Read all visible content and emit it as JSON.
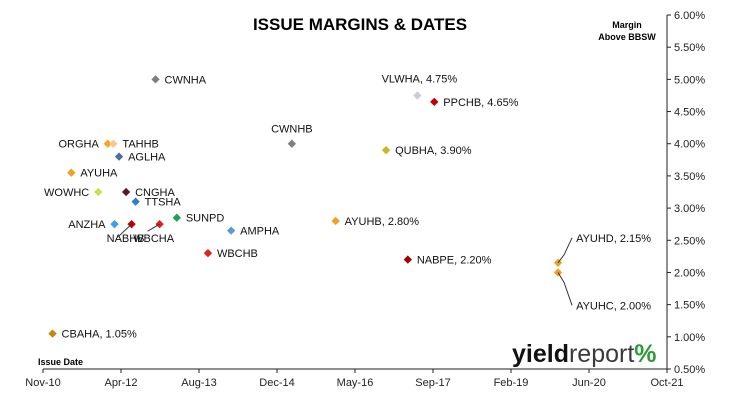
{
  "chart_data": {
    "type": "scatter",
    "title": "ISSUE MARGINS & DATES",
    "xlabel": "Issue Date",
    "ylabel": "Margin Above BBSW",
    "ylabel_lines": [
      "Margin",
      "Above BBSW"
    ],
    "xlim": [
      "2010-11-01",
      "2021-10-01"
    ],
    "ylim": [
      0.5,
      6.0
    ],
    "x_ticks": [
      "Nov-10",
      "Apr-12",
      "Aug-13",
      "Dec-14",
      "May-16",
      "Sep-17",
      "Feb-19",
      "Jun-20",
      "Oct-21"
    ],
    "y_ticks": [
      "0.50%",
      "1.00%",
      "1.50%",
      "2.00%",
      "2.50%",
      "3.00%",
      "3.50%",
      "4.00%",
      "4.50%",
      "5.00%",
      "5.50%",
      "6.00%"
    ],
    "grid": false,
    "legend": "none",
    "points": [
      {
        "label": "CWNHA",
        "x": "2012-10-20",
        "y": 5.0,
        "color": "#7f7f7f",
        "label_pos": "right"
      },
      {
        "label": "VLWHA, 4.75%",
        "x": "2017-05-20",
        "y": 4.75,
        "color": "#c9ccd6",
        "label_pos": "above-left"
      },
      {
        "label": "PPCHB, 4.65%",
        "x": "2017-09-05",
        "y": 4.65,
        "color": "#c00000",
        "label_pos": "right"
      },
      {
        "label": "CWNHB",
        "x": "2015-03-10",
        "y": 4.0,
        "color": "#7f7f7f",
        "label_pos": "above"
      },
      {
        "label": "QUBHA, 3.90%",
        "x": "2016-11-01",
        "y": 3.9,
        "color": "#c6b820",
        "label_pos": "right"
      },
      {
        "label": "ORGHA",
        "x": "2011-12-20",
        "y": 4.0,
        "color": "#f5a623",
        "label_pos": "left"
      },
      {
        "label": "TAHHB",
        "x": "2012-01-25",
        "y": 4.0,
        "color": "#f7c98d",
        "label_pos": "right"
      },
      {
        "label": "AGLHA",
        "x": "2012-03-01",
        "y": 3.8,
        "color": "#4a6fa0",
        "label_pos": "right"
      },
      {
        "label": "AYUHA",
        "x": "2011-05-01",
        "y": 3.55,
        "color": "#f0a020",
        "label_pos": "right"
      },
      {
        "label": "WOWHC",
        "x": "2011-10-20",
        "y": 3.25,
        "color": "#c8e04a",
        "label_pos": "left"
      },
      {
        "label": "CNGHA",
        "x": "2012-04-15",
        "y": 3.25,
        "color": "#5a1830",
        "label_pos": "right"
      },
      {
        "label": "TTSHA",
        "x": "2012-06-15",
        "y": 3.1,
        "color": "#2e7dd1",
        "label_pos": "right"
      },
      {
        "label": "SUNPD",
        "x": "2013-03-05",
        "y": 2.85,
        "color": "#1ea05a",
        "label_pos": "right"
      },
      {
        "label": "ANZHA",
        "x": "2012-02-01",
        "y": 2.75,
        "color": "#3ca0f0",
        "label_pos": "left"
      },
      {
        "label": "NABHB",
        "x": "2012-05-20",
        "y": 2.75,
        "color": "#c00000",
        "label_pos": "below-left"
      },
      {
        "label": "WBCHA",
        "x": "2012-11-15",
        "y": 2.75,
        "color": "#e02020",
        "label_pos": "below-left"
      },
      {
        "label": "AYUHB, 2.80%",
        "x": "2015-12-15",
        "y": 2.8,
        "color": "#f0a020",
        "label_pos": "right"
      },
      {
        "label": "AMPHA",
        "x": "2014-02-15",
        "y": 2.65,
        "color": "#5b9bd5",
        "label_pos": "right"
      },
      {
        "label": "WBCHB",
        "x": "2013-09-20",
        "y": 2.3,
        "color": "#e02020",
        "label_pos": "right"
      },
      {
        "label": "NABPE, 2.20%",
        "x": "2017-03-20",
        "y": 2.2,
        "color": "#a00000",
        "label_pos": "right"
      },
      {
        "label": "AYUHD, 2.15%",
        "x": "2019-11-05",
        "y": 2.15,
        "color": "#f0a020",
        "label_pos": "callout-up"
      },
      {
        "label": "AYUHC, 2.00%",
        "x": "2019-11-05",
        "y": 2.0,
        "color": "#f0a020",
        "label_pos": "callout-down"
      },
      {
        "label": "CBAHA, 1.05%",
        "x": "2011-01-01",
        "y": 1.05,
        "color": "#c8860a",
        "label_pos": "right"
      }
    ]
  },
  "branding": {
    "logo_prefix": "yield",
    "logo_suffix": "report",
    "logo_mark": "%",
    "logo_prefix_color": "#111111",
    "logo_suffix_color": "#3a3a3a",
    "logo_mark_green": "#2e9a3a",
    "logo_mark_red": "#d02020"
  }
}
